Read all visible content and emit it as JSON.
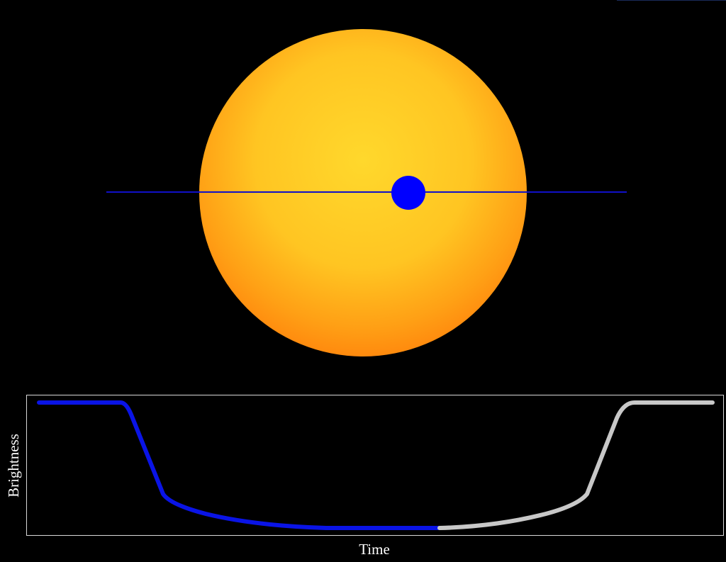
{
  "plot": {
    "y_label": "Brightness",
    "x_label": "Time"
  }
}
